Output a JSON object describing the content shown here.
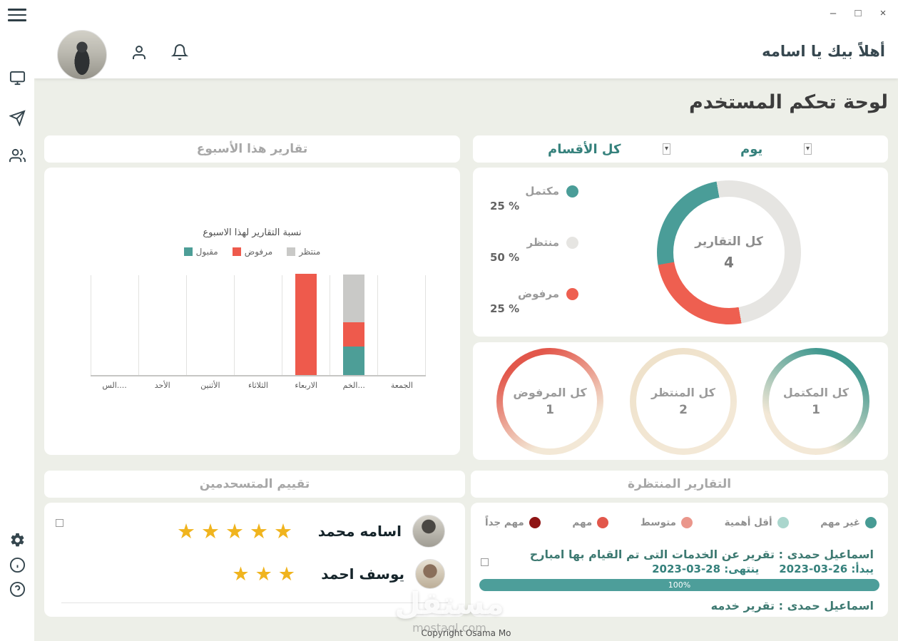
{
  "topbar": {
    "greeting": "أهلاً بيك يا اسامه",
    "window_controls": {
      "minimize": "–",
      "maximize": "□",
      "close": "×"
    }
  },
  "page": {
    "title": "لوحة تحكم المستخدم",
    "footer": "Copyright Osama Mo",
    "watermark_title": "مستقل",
    "watermark_sub": "mostaql.com"
  },
  "filters": {
    "department": "كل الأقسام",
    "period": "يوم"
  },
  "weekly": {
    "header": "تقارير هذا الأسبوع"
  },
  "chart_data": {
    "type": "stacked-bar",
    "title": "نسبة التقارير لهذا الاسبوع",
    "categories": [
      "الس....",
      "الأحد",
      "الأثنين",
      "الثلاثاء",
      "الاربعاء",
      "الخم...",
      "الجمعة"
    ],
    "ymax": 2,
    "series": [
      {
        "name": "مقبول",
        "color": "#4d9e97",
        "values": [
          0,
          0,
          0,
          0,
          0,
          0.57,
          0
        ]
      },
      {
        "name": "مرفوض",
        "color": "#ee5a4c",
        "values": [
          0,
          0,
          0,
          0,
          2,
          0.48,
          0
        ]
      },
      {
        "name": "منتظر",
        "color": "#c9c9c7",
        "values": [
          0,
          0,
          0,
          0,
          0,
          0.95,
          0
        ]
      }
    ]
  },
  "donut": {
    "title": "كل التقارير",
    "value": "4",
    "segments": [
      {
        "label": "مكتمل",
        "pct_label": "25 %",
        "pct": 25,
        "color": "#4a9d98"
      },
      {
        "label": "منتظر",
        "pct_label": "50 %",
        "pct": 50,
        "color": "#e6e5e2"
      },
      {
        "label": "مرفوض",
        "pct_label": "25 %",
        "pct": 25,
        "color": "#ee5f50"
      }
    ]
  },
  "totals": [
    {
      "label": "كل المرفوض",
      "value": "1",
      "color": "#e2574b"
    },
    {
      "label": "كل المنتظر",
      "value": "2",
      "color": "#efe2cb"
    },
    {
      "label": "كل المكتمل",
      "value": "1",
      "color": "#41988f"
    }
  ],
  "ratings": {
    "header": "تقييم المتسحدمين",
    "star_color": "#f0b41e",
    "users": [
      {
        "name": "اسامه محمد",
        "stars": 5
      },
      {
        "name": "يوسف احمد",
        "stars": 3
      }
    ]
  },
  "pending": {
    "header": "التقارير المنتظرة",
    "legend": [
      {
        "label": "مهم جداً",
        "color": "#8e1414"
      },
      {
        "label": "مهم",
        "color": "#e2574b"
      },
      {
        "label": "متوسط",
        "color": "#ea968b"
      },
      {
        "label": "أقل أهمية",
        "color": "#aad6cd"
      },
      {
        "label": "غير مهم",
        "color": "#479b94"
      }
    ],
    "reports": [
      {
        "title": "اسماعيل حمدى :  تقرير عن الخدمات التى تم القيام بها  امبارح",
        "start_label": "يبدأ:",
        "start_date": "26-03-2023",
        "end_label": "ينتهى:",
        "end_date": "28-03-2023",
        "progress_label": "100%",
        "progress_pct": 100
      },
      {
        "title": "اسماعيل حمدى :  تقرير خدمه",
        "start_label": "",
        "start_date": "",
        "end_label": "",
        "end_date": "",
        "progress_label": "",
        "progress_pct": 0
      }
    ]
  }
}
